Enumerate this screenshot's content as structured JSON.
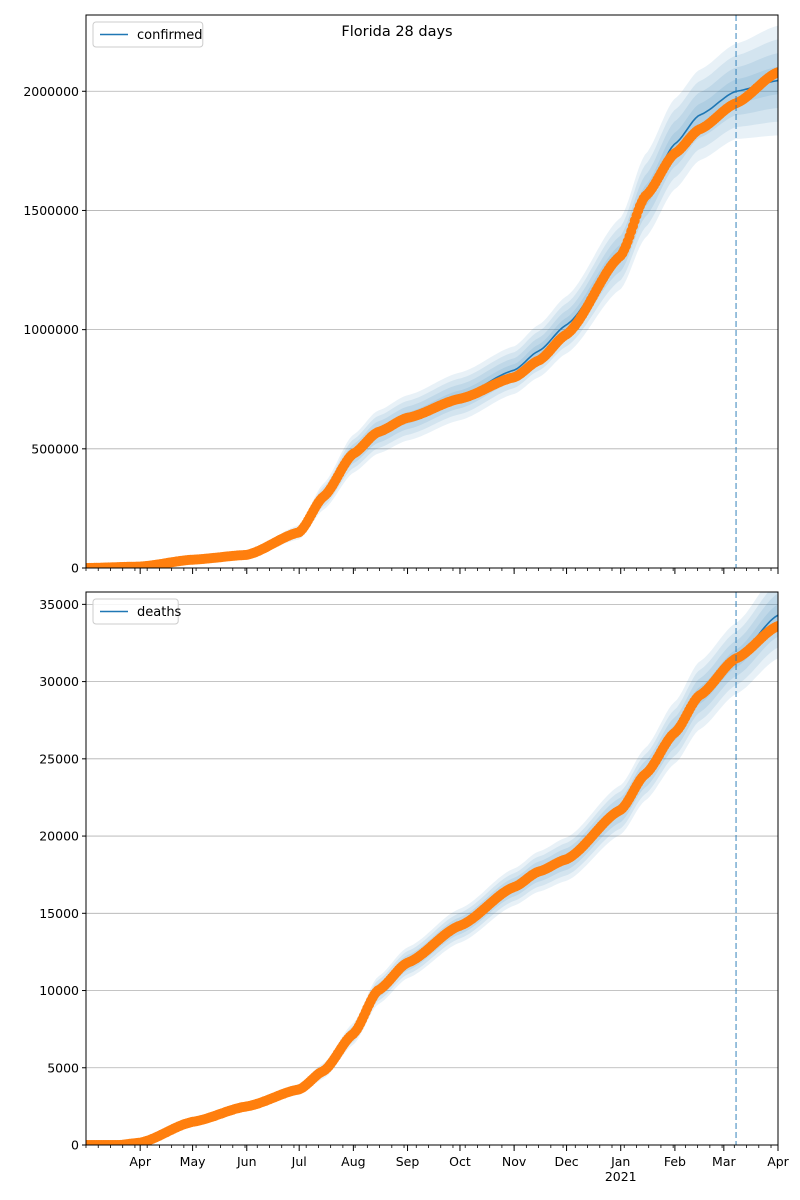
{
  "figure": {
    "title": "Florida 28 days"
  },
  "colors": {
    "model": "#1f77b4",
    "observed": "#ff7f0e",
    "band": "#1f77b4",
    "grid": "#b0b0b0",
    "vline": "#1f77b4"
  },
  "x_axis": {
    "type": "date",
    "range": [
      "2020-03-01",
      "2021-04-01"
    ],
    "major_ticks": [
      {
        "date": "2020-04-01",
        "label": "Apr"
      },
      {
        "date": "2020-05-01",
        "label": "May"
      },
      {
        "date": "2020-06-01",
        "label": "Jun"
      },
      {
        "date": "2020-07-01",
        "label": "Jul"
      },
      {
        "date": "2020-08-01",
        "label": "Aug"
      },
      {
        "date": "2020-09-01",
        "label": "Sep"
      },
      {
        "date": "2020-10-01",
        "label": "Oct"
      },
      {
        "date": "2020-11-01",
        "label": "Nov"
      },
      {
        "date": "2020-12-01",
        "label": "Dec"
      },
      {
        "date": "2021-01-01",
        "label": "Jan",
        "sublabel": "2021"
      },
      {
        "date": "2021-02-01",
        "label": "Feb"
      },
      {
        "date": "2021-03-01",
        "label": "Mar"
      },
      {
        "date": "2021-04-01",
        "label": "Apr"
      }
    ],
    "forecast_start": "2021-03-08"
  },
  "chart_data": [
    {
      "type": "line",
      "legend": {
        "label": "confirmed",
        "placement": "upper-left"
      },
      "ylim": [
        0,
        2320000
      ],
      "yticks": [
        0,
        500000,
        1000000,
        1500000,
        2000000
      ],
      "grid": true,
      "model": {
        "x": [
          "2020-03-01",
          "2020-04-01",
          "2020-05-01",
          "2020-06-01",
          "2020-07-01",
          "2020-07-15",
          "2020-08-01",
          "2020-08-15",
          "2020-09-01",
          "2020-10-01",
          "2020-11-01",
          "2020-11-15",
          "2020-12-01",
          "2021-01-01",
          "2021-01-15",
          "2021-02-01",
          "2021-02-15",
          "2021-03-08",
          "2021-04-01"
        ],
        "y": [
          0,
          6000,
          35000,
          55000,
          150000,
          300000,
          480000,
          570000,
          630000,
          720000,
          830000,
          910000,
          1020000,
          1320000,
          1560000,
          1780000,
          1900000,
          2000000,
          2045000
        ],
        "spread": [
          0,
          2000,
          6000,
          9000,
          30000,
          55000,
          80000,
          90000,
          95000,
          100000,
          100000,
          110000,
          120000,
          150000,
          175000,
          190000,
          190000,
          200000,
          230000
        ]
      },
      "observed": {
        "x": [
          "2020-03-01",
          "2020-04-01",
          "2020-05-01",
          "2020-06-01",
          "2020-07-01",
          "2020-07-15",
          "2020-08-01",
          "2020-08-15",
          "2020-09-01",
          "2020-10-01",
          "2020-11-01",
          "2020-11-15",
          "2020-12-01",
          "2021-01-01",
          "2021-01-15",
          "2021-02-01",
          "2021-02-15",
          "2021-03-08",
          "2021-04-01"
        ],
        "y": [
          0,
          6000,
          35000,
          55000,
          150000,
          300000,
          480000,
          570000,
          630000,
          710000,
          800000,
          870000,
          980000,
          1310000,
          1560000,
          1740000,
          1840000,
          1950000,
          2080000
        ]
      }
    },
    {
      "type": "line",
      "legend": {
        "label": "deaths",
        "placement": "upper-left"
      },
      "ylim": [
        0,
        35800
      ],
      "yticks": [
        0,
        5000,
        10000,
        15000,
        20000,
        25000,
        30000,
        35000
      ],
      "grid": true,
      "model": {
        "x": [
          "2020-03-01",
          "2020-03-20",
          "2020-04-01",
          "2020-05-01",
          "2020-06-01",
          "2020-07-01",
          "2020-07-15",
          "2020-08-01",
          "2020-08-15",
          "2020-09-01",
          "2020-10-01",
          "2020-11-01",
          "2020-11-15",
          "2020-12-01",
          "2021-01-01",
          "2021-01-15",
          "2021-02-01",
          "2021-02-15",
          "2021-03-08",
          "2021-04-01"
        ],
        "y": [
          0,
          0,
          150,
          1500,
          2500,
          3600,
          4800,
          7200,
          10000,
          11800,
          14200,
          16700,
          17700,
          18500,
          21700,
          24000,
          26700,
          29100,
          31500,
          34300
        ],
        "spread": [
          0,
          0,
          40,
          150,
          250,
          350,
          500,
          700,
          900,
          1000,
          1100,
          1200,
          1300,
          1400,
          1600,
          1700,
          2000,
          2200,
          2300,
          2800
        ]
      },
      "observed": {
        "x": [
          "2020-03-01",
          "2020-03-20",
          "2020-04-01",
          "2020-05-01",
          "2020-06-01",
          "2020-07-01",
          "2020-07-15",
          "2020-08-01",
          "2020-08-15",
          "2020-09-01",
          "2020-10-01",
          "2020-11-01",
          "2020-11-15",
          "2020-12-01",
          "2021-01-01",
          "2021-01-15",
          "2021-02-01",
          "2021-02-15",
          "2021-03-08",
          "2021-04-01"
        ],
        "y": [
          0,
          0,
          150,
          1500,
          2500,
          3600,
          4800,
          7200,
          10000,
          11800,
          14200,
          16700,
          17700,
          18500,
          21700,
          24000,
          26700,
          29100,
          31500,
          33600
        ]
      }
    }
  ]
}
